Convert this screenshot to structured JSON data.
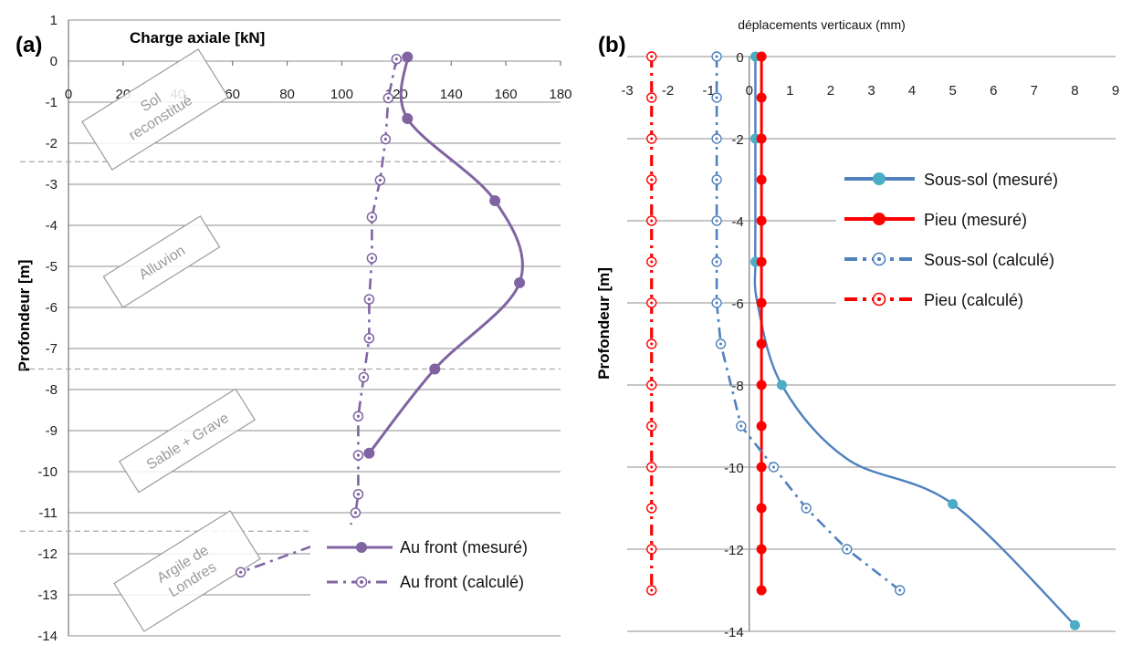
{
  "chart_data": [
    {
      "panel_label": "(a)",
      "type": "line",
      "title": "Charge axiale [kN]",
      "xlabel": "Charge axiale [kN]",
      "ylabel": "Profondeur [m]",
      "xlim": [
        0,
        180
      ],
      "ylim": [
        -14,
        1
      ],
      "x_ticks": [
        "0",
        "20",
        "40",
        "60",
        "80",
        "100",
        "120",
        "140",
        "160",
        "180"
      ],
      "y_ticks": [
        "1",
        "0",
        "-1",
        "-2",
        "-3",
        "-4",
        "-5",
        "-6",
        "-7",
        "-8",
        "-9",
        "-10",
        "-11",
        "-12",
        "-13",
        "-14"
      ],
      "grid": "horizontal",
      "legend_position": "bottom-right",
      "layers": [
        {
          "label": "Sol\nreconstitué",
          "boundary_depth": -2.45
        },
        {
          "label": "Alluvion",
          "boundary_depth": -7.5
        },
        {
          "label": "Sable + Grave",
          "boundary_depth": -11.45
        },
        {
          "label": "Argile de\nLondres",
          "boundary_depth": null
        }
      ],
      "series": [
        {
          "name": "Au front (mesuré)",
          "style": "solid",
          "color": "#8064a2",
          "x": [
            124,
            124,
            156,
            165,
            134,
            110
          ],
          "y": [
            0.1,
            -1.4,
            -3.4,
            -5.4,
            -7.5,
            -9.55
          ]
        },
        {
          "name": "Au front (calculé)",
          "style": "dashdot-open",
          "color": "#8064a2",
          "x": [
            120,
            117,
            116,
            114,
            111,
            111,
            110,
            110,
            108,
            106,
            106,
            106,
            105,
            102,
            63
          ],
          "y": [
            0.05,
            -0.9,
            -1.9,
            -2.9,
            -3.8,
            -4.8,
            -5.8,
            -6.75,
            -7.7,
            -8.65,
            -9.6,
            -10.55,
            -11.0,
            -11.5,
            -12.45
          ]
        }
      ]
    },
    {
      "panel_label": "(b)",
      "type": "line",
      "title": "déplacements verticaux (mm)",
      "xlabel": "déplacements verticaux (mm)",
      "ylabel": "Profondeur [m]",
      "xlim": [
        -3,
        9
      ],
      "ylim": [
        -14,
        0
      ],
      "x_ticks": [
        "-3",
        "-2",
        "-1",
        "0",
        "1",
        "2",
        "3",
        "4",
        "5",
        "6",
        "7",
        "8",
        "9"
      ],
      "y_ticks": [
        "0",
        "-2",
        "-4",
        "-6",
        "-8",
        "-10",
        "-12",
        "-14"
      ],
      "grid": "horizontal",
      "legend_position": "top-right",
      "series": [
        {
          "name": "Sous-sol (mesuré)",
          "style": "solid",
          "color": "#4f81bd",
          "marker_color": "#4bacc6",
          "x": [
            0.15,
            0.15,
            0.15,
            0.15,
            0.2,
            0.8,
            2.4,
            5.0,
            8.0
          ],
          "y": [
            0,
            -2,
            -4,
            -5,
            -6,
            -8,
            -9.8,
            -10.9,
            -13.85
          ],
          "markers": [
            true,
            true,
            false,
            true,
            false,
            true,
            false,
            true,
            true
          ]
        },
        {
          "name": "Pieu (mesuré)",
          "style": "solid",
          "color": "#ff0000",
          "x": [
            0.3,
            0.3,
            0.3,
            0.3,
            0.3,
            0.3,
            0.3,
            0.3,
            0.3,
            0.3,
            0.3,
            0.3,
            0.3,
            0.3
          ],
          "y": [
            0,
            -1,
            -2,
            -3,
            -4,
            -5,
            -6,
            -7,
            -8,
            -9,
            -10,
            -11,
            -12,
            -13
          ]
        },
        {
          "name": "Sous-sol (calculé)",
          "style": "dashdot-open",
          "color": "#4f81bd",
          "x": [
            -0.8,
            -0.8,
            -0.8,
            -0.8,
            -0.8,
            -0.8,
            -0.8,
            -0.7,
            -0.2,
            0.6,
            1.4,
            2.4,
            3.7
          ],
          "y": [
            0,
            -1,
            -2,
            -3,
            -4,
            -5,
            -6,
            -7,
            -9,
            -10,
            -11,
            -12,
            -13
          ]
        },
        {
          "name": "Pieu (calculé)",
          "style": "dashdot-open",
          "color": "#ff0000",
          "x": [
            -2.4,
            -2.4,
            -2.4,
            -2.4,
            -2.4,
            -2.4,
            -2.4,
            -2.4,
            -2.4,
            -2.4,
            -2.4,
            -2.4,
            -2.4,
            -2.4
          ],
          "y": [
            0,
            -1,
            -2,
            -3,
            -4,
            -5,
            -6,
            -7,
            -8,
            -9,
            -10,
            -11,
            -12,
            -13
          ]
        }
      ]
    }
  ]
}
